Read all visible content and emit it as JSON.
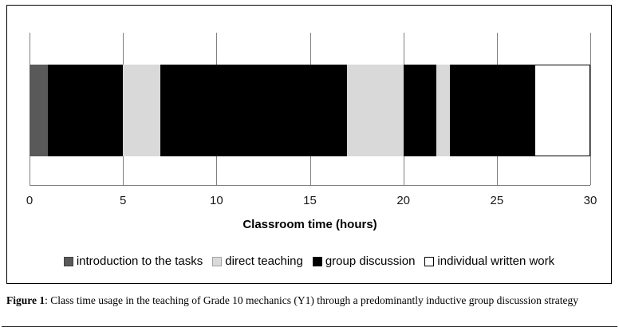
{
  "chart_data": {
    "type": "bar",
    "subtype": "horizontal-stacked-timeline",
    "title": "",
    "xlabel": "Classroom time (hours)",
    "ylabel": "",
    "xlim": [
      0,
      30
    ],
    "xticks": [
      0,
      5,
      10,
      15,
      20,
      25,
      30
    ],
    "grid": "vertical-gridlines-on",
    "legend_position": "bottom-center",
    "legend": [
      {
        "label": "introduction to the tasks",
        "color": "#595959"
      },
      {
        "label": "direct teaching",
        "color": "#d9d9d9"
      },
      {
        "label": "group discussion",
        "color": "#000000"
      },
      {
        "label": "individual written work",
        "color": "#ffffff"
      }
    ],
    "segments": [
      {
        "category": "introduction to the tasks",
        "start": 0,
        "end": 1
      },
      {
        "category": "group discussion",
        "start": 1,
        "end": 5
      },
      {
        "category": "direct teaching",
        "start": 5,
        "end": 7
      },
      {
        "category": "group discussion",
        "start": 7,
        "end": 17
      },
      {
        "category": "direct teaching",
        "start": 17,
        "end": 20
      },
      {
        "category": "group discussion",
        "start": 20,
        "end": 21.75
      },
      {
        "category": "direct teaching",
        "start": 21.75,
        "end": 22.5
      },
      {
        "category": "group discussion",
        "start": 22.5,
        "end": 27
      },
      {
        "category": "individual written work",
        "start": 27,
        "end": 30
      }
    ]
  },
  "caption": {
    "label": "Figure 1",
    "text": ": Class time usage in the teaching of Grade 10 mechanics (Y1) through a predominantly inductive group discussion strategy"
  }
}
